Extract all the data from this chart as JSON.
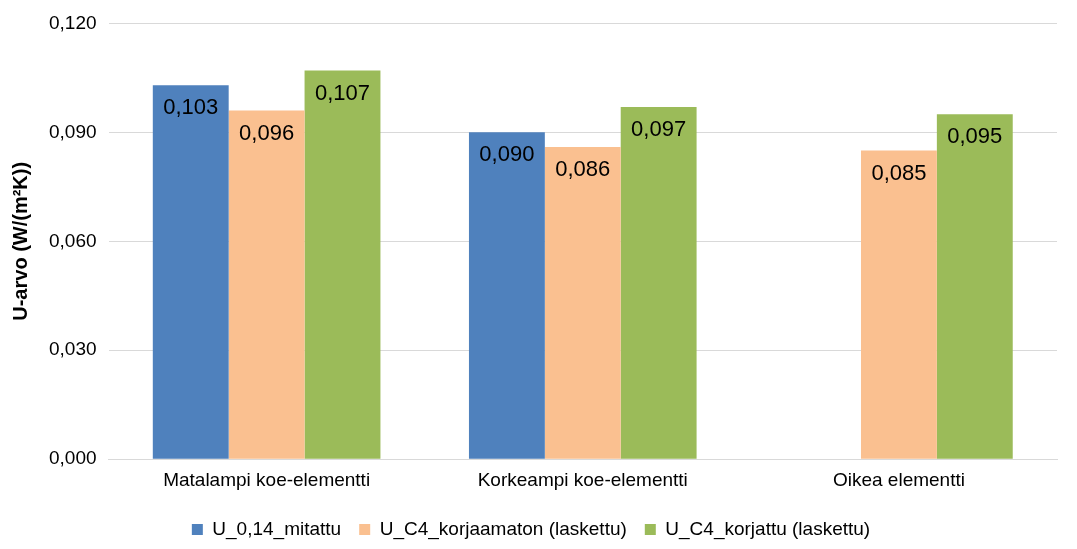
{
  "chart_data": {
    "type": "bar",
    "ylabel": "U-arvo (W/(m²K))",
    "categories": [
      "Matalampi koe-elementti",
      "Korkeampi koe-elementti",
      "Oikea elementti"
    ],
    "series": [
      {
        "name": "U_0,14_mitattu",
        "color": "#4f81bd",
        "values": [
          0.103,
          0.09,
          null
        ],
        "value_labels": [
          "0,103",
          "0,090",
          null
        ]
      },
      {
        "name": "U_C4_korjaamaton (laskettu)",
        "color": "#fac090",
        "values": [
          0.096,
          0.086,
          0.085
        ],
        "value_labels": [
          "0,096",
          "0,086",
          "0,085"
        ]
      },
      {
        "name": "U_C4_korjattu (laskettu)",
        "color": "#9bbb59",
        "values": [
          0.107,
          0.097,
          0.095
        ],
        "value_labels": [
          "0,107",
          "0,097",
          "0,095"
        ]
      }
    ],
    "ylim": [
      0,
      0.12
    ],
    "yticks": [
      {
        "value": 0,
        "label": "0,000"
      },
      {
        "value": 0.03,
        "label": "0,030"
      },
      {
        "value": 0.06,
        "label": "0,060"
      },
      {
        "value": 0.09,
        "label": "0,090"
      },
      {
        "value": 0.12,
        "label": "0,120"
      }
    ],
    "grid": "y",
    "legend": "bottom"
  }
}
